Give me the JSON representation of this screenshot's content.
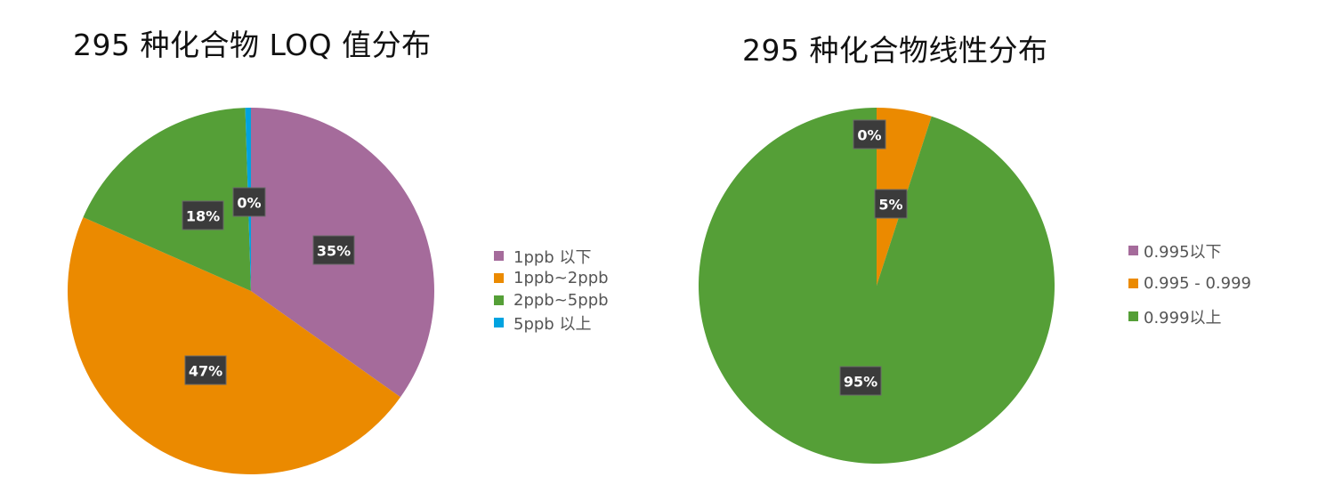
{
  "colors": {
    "purple": "#a56b9b",
    "orange": "#eb8a00",
    "green": "#559f37",
    "blue": "#00a3e0"
  },
  "chart_data": [
    {
      "type": "pie",
      "title": "295 种化合物 LOQ 值分布",
      "legend_position": "right",
      "labels": [
        "1ppb  以下",
        "1ppb~2ppb",
        "2ppb~5ppb",
        "5ppb 以上"
      ],
      "values": [
        35,
        47,
        18,
        0.5
      ],
      "data_labels": [
        "35%",
        "47%",
        "18%",
        "0%"
      ],
      "colors": [
        "#a56b9b",
        "#eb8a00",
        "#559f37",
        "#00a3e0"
      ]
    },
    {
      "type": "pie",
      "title": "295 种化合物线性分布",
      "legend_position": "right",
      "labels": [
        "0.995以下",
        "0.995 - 0.999",
        "0.999以上"
      ],
      "values": [
        0,
        5,
        95
      ],
      "data_labels": [
        "0%",
        "5%",
        "95%"
      ],
      "colors": [
        "#a56b9b",
        "#eb8a00",
        "#559f37"
      ]
    }
  ]
}
